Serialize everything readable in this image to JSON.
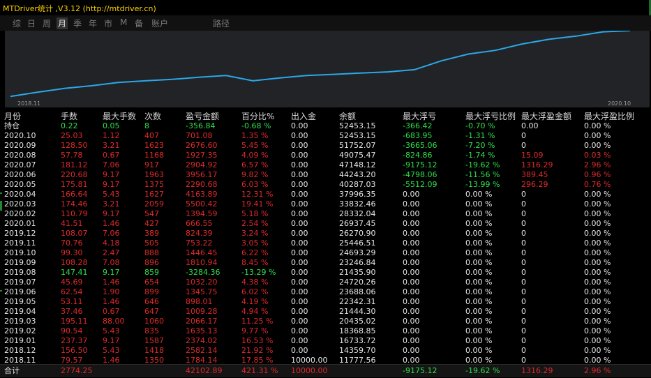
{
  "title": "MTDriver统计 ,V3.12 (http://mtdriver.cn)",
  "tabs": [
    "综",
    "日",
    "周",
    "月",
    "季",
    "年",
    "市",
    "M",
    "备",
    "账户",
    "路径"
  ],
  "active_tab": "月",
  "chart": {
    "x_start_label": "2018.11",
    "x_end_label": "2020.10",
    "line_color": "#2aa8e8",
    "balance": [
      11777.56,
      14359.7,
      16733.72,
      18368.85,
      20435.02,
      21444.3,
      22342.31,
      23688.06,
      24720.26,
      21435.9,
      23246.84,
      24693.29,
      25446.51,
      26270.9,
      26937.45,
      28332.04,
      33832.46,
      37996.35,
      40287.03,
      44243.2,
      47148.12,
      49075.47,
      51752.07,
      52453.15
    ]
  },
  "columns": [
    "月份",
    "手数",
    "最大手数",
    "次数",
    "盈亏金额",
    "百分比%",
    "出入金",
    "余额",
    "最大浮亏",
    "最大浮亏比例",
    "最大浮盈金额",
    "最大浮盈比例"
  ],
  "colors": {
    "red": "#e02a2a",
    "green": "#2ee04a",
    "white": "#e6e6e6",
    "yellow": "#ffd200"
  },
  "rows": [
    {
      "month": "持仓",
      "lots": "0.22",
      "maxlots": "0.05",
      "count": "8",
      "pl": "-356.84",
      "pct": "-0.68 %",
      "io": "0.00",
      "bal": "52453.15",
      "maxdd": "-366.42",
      "maxddp": "-0.70 %",
      "maxfp": "0.00",
      "maxfpp": "0.00 %",
      "c": "green"
    },
    {
      "month": "2020.10",
      "lots": "25.03",
      "maxlots": "1.12",
      "count": "407",
      "pl": "701.08",
      "pct": "1.35 %",
      "io": "0.00",
      "bal": "52453.15",
      "maxdd": "-683.95",
      "maxddp": "-1.31 %",
      "maxfp": "0",
      "maxfpp": "0.00 %",
      "c": "red"
    },
    {
      "month": "2020.09",
      "lots": "128.50",
      "maxlots": "3.21",
      "count": "1623",
      "pl": "2676.60",
      "pct": "5.45 %",
      "io": "0.00",
      "bal": "51752.07",
      "maxdd": "-3665.06",
      "maxddp": "-7.20 %",
      "maxfp": "0",
      "maxfpp": "0.00 %",
      "c": "red"
    },
    {
      "month": "2020.08",
      "lots": "57.78",
      "maxlots": "0.67",
      "count": "1168",
      "pl": "1927.35",
      "pct": "4.09 %",
      "io": "0.00",
      "bal": "49075.47",
      "maxdd": "-824.86",
      "maxddp": "-1.74 %",
      "maxfp": "15.09",
      "maxfpp": "0.03 %",
      "c": "red"
    },
    {
      "month": "2020.07",
      "lots": "181.12",
      "maxlots": "7.06",
      "count": "917",
      "pl": "2904.92",
      "pct": "6.57 %",
      "io": "0.00",
      "bal": "47148.12",
      "maxdd": "-9175.12",
      "maxddp": "-19.62 %",
      "maxfp": "1316.29",
      "maxfpp": "2.96 %",
      "c": "red"
    },
    {
      "month": "2020.06",
      "lots": "220.68",
      "maxlots": "9.17",
      "count": "1963",
      "pl": "3956.17",
      "pct": "9.82 %",
      "io": "0.00",
      "bal": "44243.20",
      "maxdd": "-4798.06",
      "maxddp": "-11.56 %",
      "maxfp": "389.45",
      "maxfpp": "0.96 %",
      "c": "red"
    },
    {
      "month": "2020.05",
      "lots": "175.81",
      "maxlots": "9.17",
      "count": "1375",
      "pl": "2290.68",
      "pct": "6.03 %",
      "io": "0.00",
      "bal": "40287.03",
      "maxdd": "-5512.09",
      "maxddp": "-13.99 %",
      "maxfp": "296.29",
      "maxfpp": "0.76 %",
      "c": "red"
    },
    {
      "month": "2020.04",
      "lots": "166.64",
      "maxlots": "5.43",
      "count": "1627",
      "pl": "4163.89",
      "pct": "12.31 %",
      "io": "0.00",
      "bal": "37996.35",
      "maxdd": "0.00",
      "maxddp": "0.00 %",
      "maxfp": "0",
      "maxfpp": "0.00 %",
      "c": "red"
    },
    {
      "month": "2020.03",
      "lots": "174.46",
      "maxlots": "3.21",
      "count": "2059",
      "pl": "5500.42",
      "pct": "19.41 %",
      "io": "0.00",
      "bal": "33832.46",
      "maxdd": "0.00",
      "maxddp": "0.00 %",
      "maxfp": "0",
      "maxfpp": "0.00 %",
      "c": "red"
    },
    {
      "month": "2020.02",
      "lots": "110.79",
      "maxlots": "9.17",
      "count": "547",
      "pl": "1394.59",
      "pct": "5.18 %",
      "io": "0.00",
      "bal": "28332.04",
      "maxdd": "0.00",
      "maxddp": "0.00 %",
      "maxfp": "0",
      "maxfpp": "0.00 %",
      "c": "red"
    },
    {
      "month": "2020.01",
      "lots": "41.51",
      "maxlots": "1.46",
      "count": "427",
      "pl": "666.55",
      "pct": "2.54 %",
      "io": "0.00",
      "bal": "26937.45",
      "maxdd": "0.00",
      "maxddp": "0.00 %",
      "maxfp": "0",
      "maxfpp": "0.00 %",
      "c": "red"
    },
    {
      "month": "2019.12",
      "lots": "108.07",
      "maxlots": "7.06",
      "count": "389",
      "pl": "824.39",
      "pct": "3.24 %",
      "io": "0.00",
      "bal": "26270.90",
      "maxdd": "0.00",
      "maxddp": "0.00 %",
      "maxfp": "0",
      "maxfpp": "0.00 %",
      "c": "red"
    },
    {
      "month": "2019.11",
      "lots": "70.76",
      "maxlots": "4.18",
      "count": "505",
      "pl": "753.22",
      "pct": "3.05 %",
      "io": "0.00",
      "bal": "25446.51",
      "maxdd": "0.00",
      "maxddp": "0.00 %",
      "maxfp": "0",
      "maxfpp": "0.00 %",
      "c": "red"
    },
    {
      "month": "2019.10",
      "lots": "99.30",
      "maxlots": "2.47",
      "count": "888",
      "pl": "1446.45",
      "pct": "6.22 %",
      "io": "0.00",
      "bal": "24693.29",
      "maxdd": "0.00",
      "maxddp": "0.00 %",
      "maxfp": "0",
      "maxfpp": "0.00 %",
      "c": "red"
    },
    {
      "month": "2019.09",
      "lots": "108.28",
      "maxlots": "7.08",
      "count": "896",
      "pl": "1810.94",
      "pct": "8.45 %",
      "io": "0.00",
      "bal": "23246.84",
      "maxdd": "0.00",
      "maxddp": "0.00 %",
      "maxfp": "0",
      "maxfpp": "0.00 %",
      "c": "red"
    },
    {
      "month": "2019.08",
      "lots": "147.41",
      "maxlots": "9.17",
      "count": "859",
      "pl": "-3284.36",
      "pct": "-13.29 %",
      "io": "0.00",
      "bal": "21435.90",
      "maxdd": "0.00",
      "maxddp": "0.00 %",
      "maxfp": "0",
      "maxfpp": "0.00 %",
      "c": "green"
    },
    {
      "month": "2019.07",
      "lots": "45.69",
      "maxlots": "1.46",
      "count": "654",
      "pl": "1032.20",
      "pct": "4.38 %",
      "io": "0.00",
      "bal": "24720.26",
      "maxdd": "0.00",
      "maxddp": "0.00 %",
      "maxfp": "0",
      "maxfpp": "0.00 %",
      "c": "red"
    },
    {
      "month": "2019.06",
      "lots": "62.54",
      "maxlots": "1.90",
      "count": "899",
      "pl": "1345.75",
      "pct": "6.02 %",
      "io": "0.00",
      "bal": "23688.06",
      "maxdd": "0.00",
      "maxddp": "0.00 %",
      "maxfp": "0",
      "maxfpp": "0.00 %",
      "c": "red"
    },
    {
      "month": "2019.05",
      "lots": "53.11",
      "maxlots": "1.46",
      "count": "646",
      "pl": "898.01",
      "pct": "4.19 %",
      "io": "0.00",
      "bal": "22342.31",
      "maxdd": "0.00",
      "maxddp": "0.00 %",
      "maxfp": "0",
      "maxfpp": "0.00 %",
      "c": "red"
    },
    {
      "month": "2019.04",
      "lots": "37.46",
      "maxlots": "0.67",
      "count": "647",
      "pl": "1009.28",
      "pct": "4.94 %",
      "io": "0.00",
      "bal": "21444.30",
      "maxdd": "0.00",
      "maxddp": "0.00 %",
      "maxfp": "0",
      "maxfpp": "0.00 %",
      "c": "red"
    },
    {
      "month": "2019.03",
      "lots": "195.11",
      "maxlots": "88.00",
      "count": "1060",
      "pl": "2066.17",
      "pct": "11.25 %",
      "io": "0.00",
      "bal": "20435.02",
      "maxdd": "0.00",
      "maxddp": "0.00 %",
      "maxfp": "0",
      "maxfpp": "0.00 %",
      "c": "red"
    },
    {
      "month": "2019.02",
      "lots": "90.54",
      "maxlots": "5.43",
      "count": "835",
      "pl": "1635.13",
      "pct": "9.77 %",
      "io": "0.00",
      "bal": "18368.85",
      "maxdd": "0.00",
      "maxddp": "0.00 %",
      "maxfp": "0",
      "maxfpp": "0.00 %",
      "c": "red"
    },
    {
      "month": "2019.01",
      "lots": "237.37",
      "maxlots": "9.17",
      "count": "1587",
      "pl": "2374.02",
      "pct": "16.53 %",
      "io": "0.00",
      "bal": "16733.72",
      "maxdd": "0.00",
      "maxddp": "0.00 %",
      "maxfp": "0",
      "maxfpp": "0.00 %",
      "c": "red"
    },
    {
      "month": "2018.12",
      "lots": "156.50",
      "maxlots": "5.43",
      "count": "1418",
      "pl": "2582.14",
      "pct": "21.92 %",
      "io": "0.00",
      "bal": "14359.70",
      "maxdd": "0.00",
      "maxddp": "0.00 %",
      "maxfp": "0",
      "maxfpp": "0.00 %",
      "c": "red"
    },
    {
      "month": "2018.11",
      "lots": "79.57",
      "maxlots": "1.46",
      "count": "1350",
      "pl": "1784.14",
      "pct": "17.85 %",
      "io": "10000.00",
      "bal": "11777.56",
      "maxdd": "0.00",
      "maxddp": "0.00 %",
      "maxfp": "0",
      "maxfpp": "0.00 %",
      "c": "red"
    }
  ],
  "total": {
    "month": "合计",
    "lots": "2774.25",
    "maxlots": "",
    "count": "",
    "pl": "42102.89",
    "pct": "421.31 %",
    "io": "10000.00",
    "bal": "",
    "maxdd": "-9175.12",
    "maxddp": "-19.62 %",
    "maxfp": "1316.29",
    "maxfpp": "2.96 %"
  }
}
